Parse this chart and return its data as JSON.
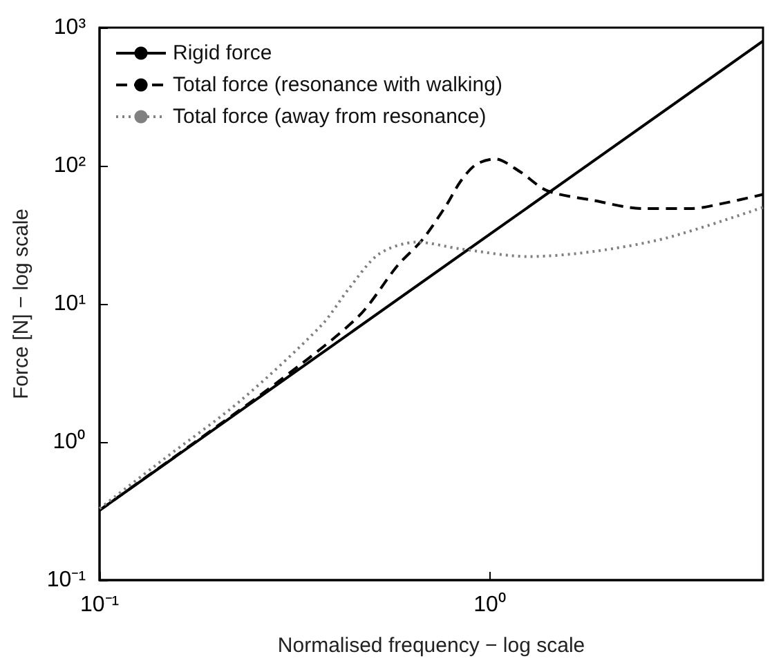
{
  "chart_data": {
    "type": "line",
    "xlabel": "Normalised frequency − log scale",
    "ylabel": "Force [N] − log scale",
    "log": "xy",
    "xlim": [
      0.1,
      5
    ],
    "ylim": [
      0.1,
      1000
    ],
    "xticks": [
      {
        "value": 0.1,
        "label": "10⁻¹"
      },
      {
        "value": 1,
        "label": "10⁰"
      }
    ],
    "yticks": [
      {
        "value": 0.1,
        "label": "10⁻¹"
      },
      {
        "value": 1,
        "label": "10⁰"
      },
      {
        "value": 10,
        "label": "10¹"
      },
      {
        "value": 100,
        "label": "10²"
      },
      {
        "value": 1000,
        "label": "10³"
      }
    ],
    "grid": false,
    "legend": "top left",
    "marker": "none",
    "series": [
      {
        "name": "Rigid force",
        "color": "#000000",
        "line_style": "solid",
        "x": [
          0.1,
          1,
          5
        ],
        "values": [
          0.32,
          32,
          800
        ]
      },
      {
        "name": "Total force (resonance with walking)",
        "color": "#000000",
        "line_style": "dashed",
        "x": [
          0.1,
          0.2,
          0.29,
          0.46,
          0.58,
          0.67,
          0.77,
          0.84,
          0.92,
          1.03,
          1.19,
          1.4,
          1.85,
          2.45,
          3.28,
          3.9,
          5
        ],
        "values": [
          0.32,
          1.3,
          2.8,
          8.1,
          19,
          29,
          51,
          77,
          102,
          112,
          91,
          66,
          56,
          49,
          49,
          53,
          62
        ]
      },
      {
        "name": "Total force (away from resonance)",
        "color": "#808080",
        "line_style": "dotted",
        "x": [
          0.1,
          0.145,
          0.23,
          0.37,
          0.435,
          0.52,
          0.65,
          0.84,
          1.26,
          1.85,
          2.83,
          5
        ],
        "values": [
          0.33,
          0.74,
          2.0,
          7,
          12.9,
          23,
          28,
          25,
          22,
          24,
          30,
          50
        ]
      }
    ]
  }
}
